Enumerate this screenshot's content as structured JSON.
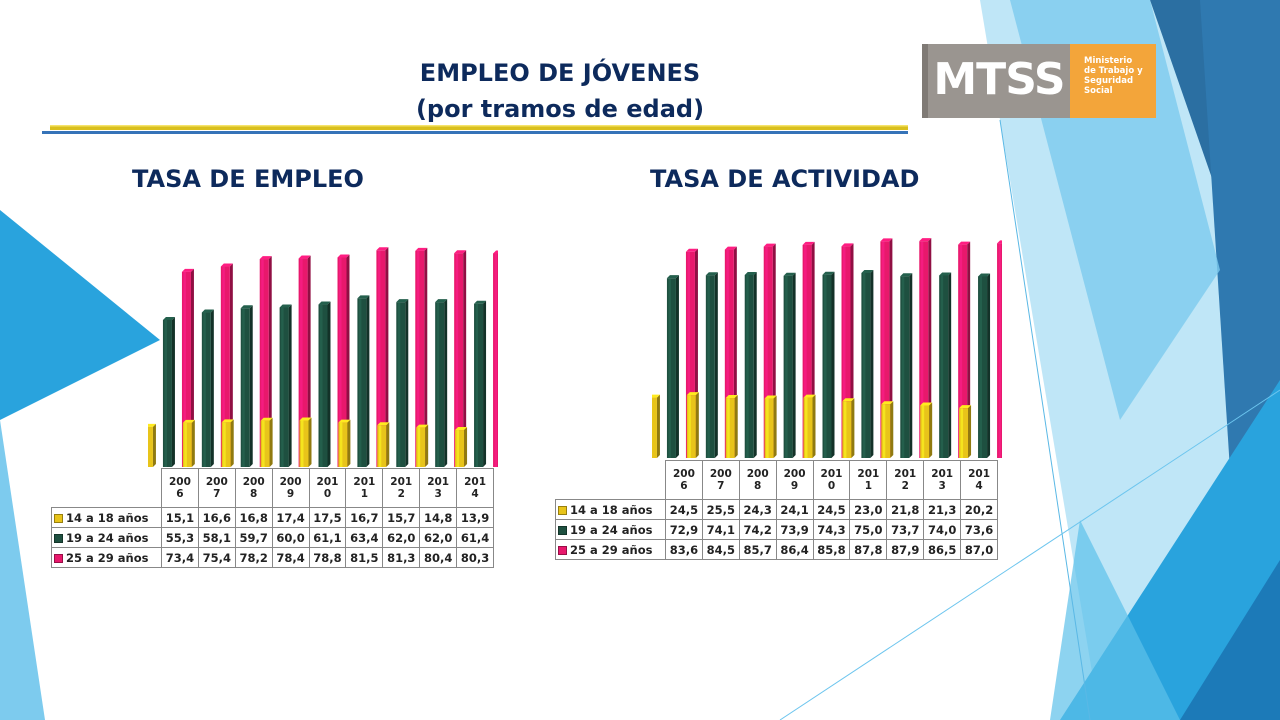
{
  "title_line1": "EMPLEO DE JÓVENES",
  "title_line2": "(por tramos de edad)",
  "logo": {
    "mark": "MTSS",
    "org_name": "Ministerio\nde Trabajo y\nSeguridad\nSocial",
    "colors": {
      "mark": "#9a9590",
      "org": "#f3a53a"
    }
  },
  "colors": {
    "title": "#0d2a5c",
    "series": [
      "#e8c41a",
      "#1e5040",
      "#e8186c"
    ]
  },
  "chart_data": [
    {
      "type": "bar",
      "title": "TASA DE EMPLEO",
      "categories": [
        "200\n6",
        "200\n7",
        "200\n8",
        "200\n9",
        "201\n0",
        "201\n1",
        "201\n2",
        "201\n3",
        "201\n4"
      ],
      "series": [
        {
          "name": "14 a 18 años",
          "values": [
            15.1,
            16.6,
            16.8,
            17.4,
            17.5,
            16.7,
            15.7,
            14.8,
            13.9
          ]
        },
        {
          "name": "19 a 24 años",
          "values": [
            55.3,
            58.1,
            59.7,
            60.0,
            61.1,
            63.4,
            62.0,
            62.0,
            61.4
          ]
        },
        {
          "name": "25 a 29 años",
          "values": [
            73.4,
            75.4,
            78.2,
            78.4,
            78.8,
            81.5,
            81.3,
            80.4,
            80.3
          ]
        }
      ],
      "display": [
        "15,1",
        "16,6",
        "16,8",
        "17,4",
        "17,5",
        "16,7",
        "15,7",
        "14,8",
        "13,9",
        "55,3",
        "58,1",
        "59,7",
        "60,0",
        "61,1",
        "63,4",
        "62,0",
        "62,0",
        "61,4",
        "73,4",
        "75,4",
        "78,2",
        "78,4",
        "78,8",
        "81,5",
        "81,3",
        "80,4",
        "80,3"
      ],
      "ylim": [
        0,
        85
      ],
      "grid": false,
      "legend": "data-table"
    },
    {
      "type": "bar",
      "title": "TASA DE ACTIVIDAD",
      "categories": [
        "200\n6",
        "200\n7",
        "200\n8",
        "200\n9",
        "201\n0",
        "201\n1",
        "201\n2",
        "201\n3",
        "201\n4"
      ],
      "series": [
        {
          "name": "14 a 18 años",
          "values": [
            24.5,
            25.5,
            24.3,
            24.1,
            24.5,
            23.0,
            21.8,
            21.3,
            20.2
          ]
        },
        {
          "name": "19 a 24 años",
          "values": [
            72.9,
            74.1,
            74.2,
            73.9,
            74.3,
            75.0,
            73.7,
            74.0,
            73.6
          ]
        },
        {
          "name": "25 a 29 años",
          "values": [
            83.6,
            84.5,
            85.7,
            86.4,
            85.8,
            87.8,
            87.9,
            86.5,
            87.0
          ]
        }
      ],
      "display": [
        "24,5",
        "25,5",
        "24,3",
        "24,1",
        "24,5",
        "23,0",
        "21,8",
        "21,3",
        "20,2",
        "72,9",
        "74,1",
        "74,2",
        "73,9",
        "74,3",
        "75,0",
        "73,7",
        "74,0",
        "73,6",
        "83,6",
        "84,5",
        "85,7",
        "86,4",
        "85,8",
        "87,8",
        "87,9",
        "86,5",
        "87,0"
      ],
      "ylim": [
        0,
        90
      ],
      "grid": false,
      "legend": "data-table"
    }
  ]
}
